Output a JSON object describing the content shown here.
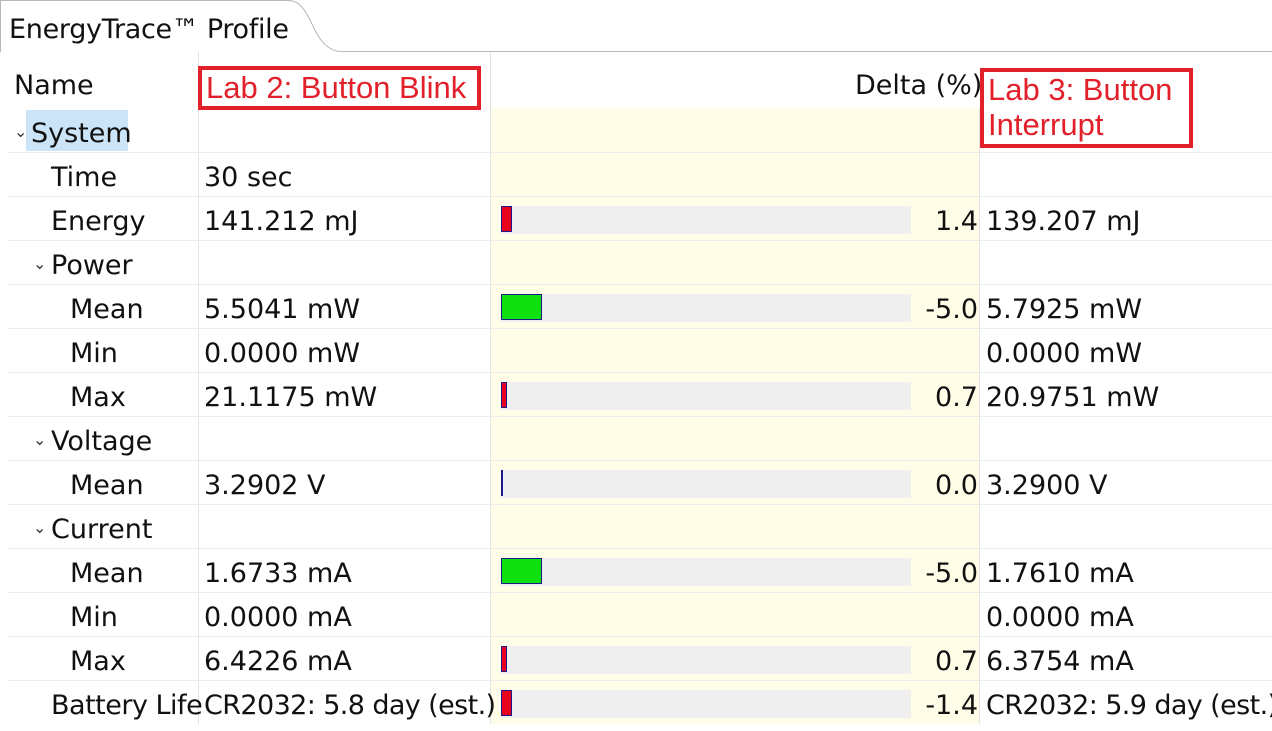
{
  "tab": {
    "title": "EnergyTrace™ Profile"
  },
  "header": {
    "name_label": "Name",
    "delta_label": "Delta (%)",
    "run1_label": "Lab 2: Button Blink",
    "run2_label_line1": "Lab 3: Button",
    "run2_label_line2": "Interrupt"
  },
  "colors": {
    "increase": "#e8001c",
    "decrease": "#10e010",
    "bar_border": "#1a1a8a"
  },
  "rows": [
    {
      "label": "System",
      "expander": "chevron-down-icon",
      "v1": "",
      "delta": "",
      "v2": "",
      "bar": null
    },
    {
      "label": "Time",
      "v1": "30 sec",
      "delta": "",
      "v2": "",
      "bar": null
    },
    {
      "label": "Energy",
      "v1": "141.212 mJ",
      "delta": "1.4",
      "v2": "139.207 mJ",
      "bar": {
        "percent": 1.4,
        "color": "#e8001c"
      }
    },
    {
      "label": "Power",
      "expander": "chevron-down-icon",
      "v1": "",
      "delta": "",
      "v2": "",
      "bar": null
    },
    {
      "label": "Mean",
      "v1": "5.5041 mW",
      "delta": "-5.0",
      "v2": "5.7925 mW",
      "bar": {
        "percent": 5.0,
        "color": "#10e010"
      }
    },
    {
      "label": "Min",
      "v1": "0.0000 mW",
      "delta": "",
      "v2": "0.0000 mW",
      "bar": null
    },
    {
      "label": "Max",
      "v1": "21.1175 mW",
      "delta": "0.7",
      "v2": "20.9751 mW",
      "bar": {
        "percent": 0.7,
        "color": "#e8001c"
      }
    },
    {
      "label": "Voltage",
      "expander": "chevron-down-icon",
      "v1": "",
      "delta": "",
      "v2": "",
      "bar": null
    },
    {
      "label": "Mean",
      "v1": "3.2902 V",
      "delta": "0.0",
      "v2": "3.2900 V",
      "bar": {
        "percent": 0.0,
        "color": "#e8001c"
      }
    },
    {
      "label": "Current",
      "expander": "chevron-down-icon",
      "v1": "",
      "delta": "",
      "v2": "",
      "bar": null
    },
    {
      "label": "Mean",
      "v1": "1.6733 mA",
      "delta": "-5.0",
      "v2": "1.7610 mA",
      "bar": {
        "percent": 5.0,
        "color": "#10e010"
      }
    },
    {
      "label": "Min",
      "v1": "0.0000 mA",
      "delta": "",
      "v2": "0.0000 mA",
      "bar": null
    },
    {
      "label": "Max",
      "v1": "6.4226 mA",
      "delta": "0.7",
      "v2": "6.3754 mA",
      "bar": {
        "percent": 0.7,
        "color": "#e8001c"
      }
    },
    {
      "label": "Battery Life",
      "v1": "CR2032: 5.8 day (est.)",
      "delta": "-1.4",
      "v2": "CR2032: 5.9 day (est.)",
      "bar": {
        "percent": 1.4,
        "color": "#e8001c"
      }
    }
  ]
}
